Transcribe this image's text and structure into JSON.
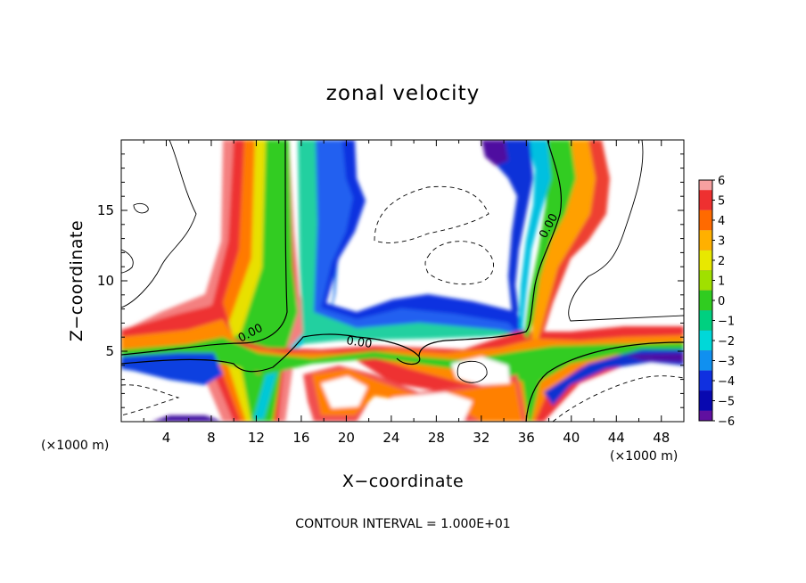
{
  "chart_data": {
    "type": "heatmap",
    "title": "zonal velocity",
    "xlabel": "X−coordinate",
    "ylabel": "Z−coordinate",
    "x_unit": "(×1000 m)",
    "y_unit": "(×1000 m)",
    "xlim": [
      0,
      50
    ],
    "ylim": [
      0,
      20
    ],
    "x_ticks": [
      4,
      8,
      12,
      16,
      20,
      24,
      28,
      32,
      36,
      40,
      44,
      48
    ],
    "y_ticks": [
      5,
      10,
      15
    ],
    "colorbar": {
      "min": -6,
      "max": 6,
      "ticks": [
        "6",
        "5",
        "4",
        "3",
        "2",
        "1",
        "0",
        "−1",
        "−2",
        "−3",
        "−4",
        "−5",
        "−6"
      ],
      "colors": [
        "#f7a0a0",
        "#ee3030",
        "#ff6a00",
        "#ffb000",
        "#e8e800",
        "#a0e000",
        "#30cc20",
        "#00d080",
        "#00d8d8",
        "#1090f0",
        "#1030e0",
        "#0808b0",
        "#6010a0"
      ]
    },
    "contour_label": "0.00",
    "note": "CONTOUR INTERVAL = 1.000E+01",
    "features": [
      {
        "name": "left-column",
        "x_center": 14,
        "z_range": [
          5,
          20
        ]
      },
      {
        "name": "right-column",
        "x_center": 35,
        "z_range": [
          5,
          20
        ]
      },
      {
        "name": "low-level-band",
        "x_range": [
          0,
          50
        ],
        "z_center": 5.5
      }
    ]
  }
}
